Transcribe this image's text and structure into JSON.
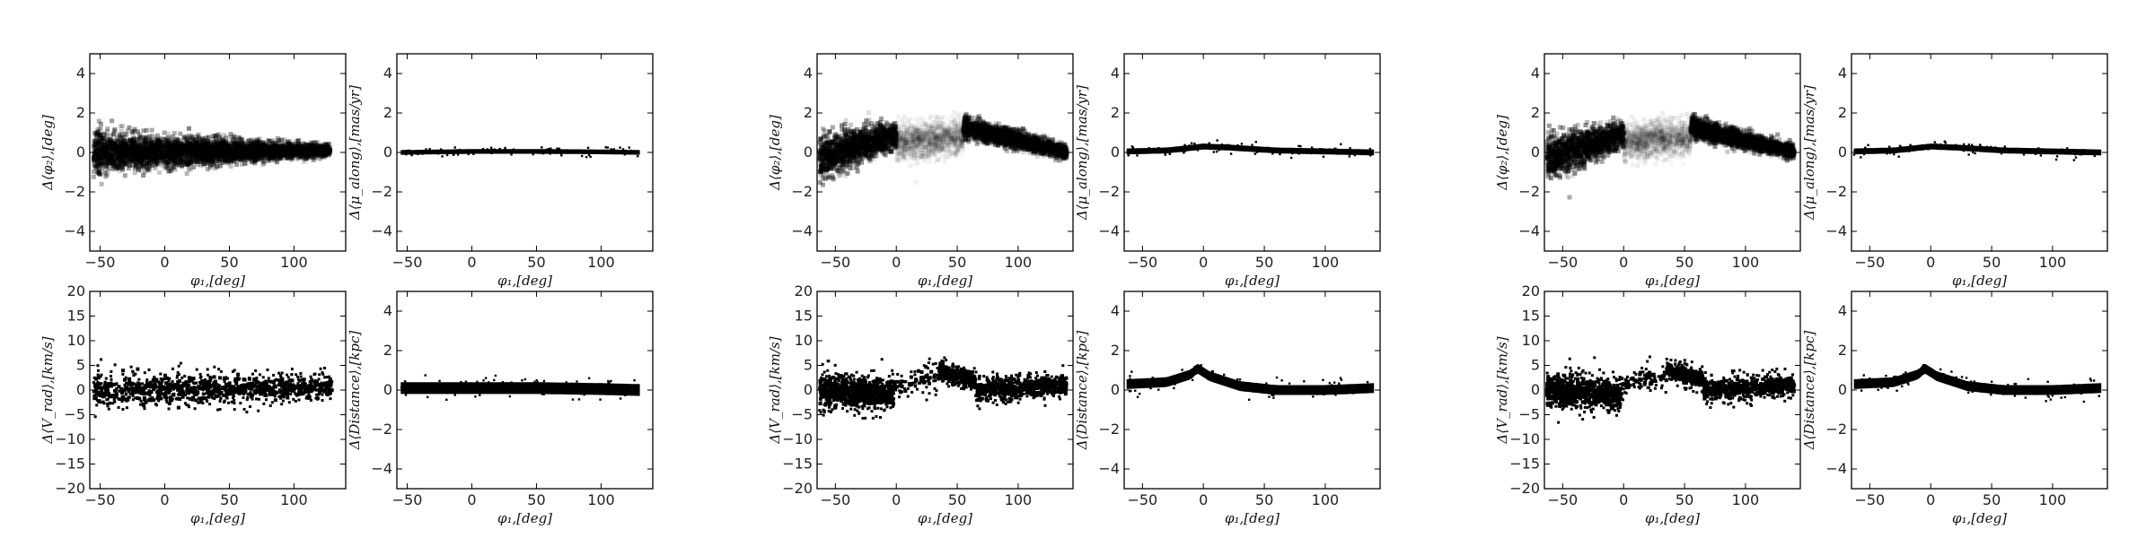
{
  "chart_data": [
    {
      "id": "A-phi2",
      "type": "scatter",
      "style": "density",
      "ylabel": "Δ⟨φ₂⟩,[deg]",
      "xlabel": "φ₁,[deg]",
      "xlim": [
        -58,
        140
      ],
      "ylim": [
        -5,
        5
      ],
      "xticks": [
        {
          "v": -50,
          "label": "−50"
        },
        {
          "v": 0,
          "label": "0"
        },
        {
          "v": 50,
          "label": "50"
        },
        {
          "v": 100,
          "label": "100"
        }
      ],
      "yticks": [
        {
          "v": -4,
          "label": "−4"
        },
        {
          "v": -2,
          "label": "−2"
        },
        {
          "v": 0,
          "label": "0"
        },
        {
          "v": 2,
          "label": "2"
        },
        {
          "v": 4,
          "label": "4"
        }
      ],
      "segments": [
        {
          "x0": -55,
          "x1": 128,
          "y0": 0,
          "y1": 0.1,
          "spread0": 0.9,
          "spread1": 0.25,
          "alpha": 0.5
        }
      ],
      "ridge": [
        [
          -55,
          0
        ],
        [
          -30,
          0
        ],
        [
          0,
          0
        ],
        [
          50,
          0.05
        ],
        [
          100,
          0.1
        ],
        [
          128,
          0.1
        ]
      ]
    },
    {
      "id": "A-pm",
      "type": "scatter",
      "style": "band",
      "ylabel": "Δ⟨μ_along⟩,[mas/yr]",
      "xlabel": "φ₁,[deg]",
      "xlim": [
        -58,
        140
      ],
      "ylim": [
        -5,
        5
      ],
      "xticks": [
        {
          "v": -50,
          "label": "−50"
        },
        {
          "v": 0,
          "label": "0"
        },
        {
          "v": 50,
          "label": "50"
        },
        {
          "v": 100,
          "label": "100"
        }
      ],
      "yticks": [
        {
          "v": -4,
          "label": "−4"
        },
        {
          "v": -2,
          "label": "−2"
        },
        {
          "v": 0,
          "label": "0"
        },
        {
          "v": 2,
          "label": "2"
        },
        {
          "v": 4,
          "label": "4"
        }
      ],
      "ridge": [
        [
          -55,
          0
        ],
        [
          0,
          0.05
        ],
        [
          50,
          0.05
        ],
        [
          100,
          0.03
        ],
        [
          130,
          0
        ]
      ],
      "thickness": 0.12
    },
    {
      "id": "A-vrad",
      "type": "scatter",
      "style": "dots",
      "ylabel": "Δ⟨V_rad⟩,[km/s]",
      "xlabel": "φ₁,[deg]",
      "xlim": [
        -58,
        140
      ],
      "ylim": [
        -20,
        20
      ],
      "xticks": [
        {
          "v": -50,
          "label": "−50"
        },
        {
          "v": 0,
          "label": "0"
        },
        {
          "v": 50,
          "label": "50"
        },
        {
          "v": 100,
          "label": "100"
        }
      ],
      "yticks": [
        {
          "v": -20,
          "label": "−20"
        },
        {
          "v": -15,
          "label": "−15"
        },
        {
          "v": -10,
          "label": "−10"
        },
        {
          "v": -5,
          "label": "−5"
        },
        {
          "v": 0,
          "label": "0"
        },
        {
          "v": 5,
          "label": "5"
        },
        {
          "v": 10,
          "label": "10"
        },
        {
          "v": 15,
          "label": "15"
        },
        {
          "v": 20,
          "label": "20"
        }
      ],
      "segments": [
        {
          "x0": -55,
          "x1": 130,
          "y0": 0,
          "y1": 0.5,
          "spread0": 3.5,
          "spread1": 2.5,
          "n": 700
        }
      ]
    },
    {
      "id": "A-dist",
      "type": "scatter",
      "style": "band",
      "ylabel": "Δ⟨Distance⟩,[kpc]",
      "xlabel": "φ₁,[deg]",
      "xlim": [
        -58,
        140
      ],
      "ylim": [
        -5,
        5
      ],
      "xticks": [
        {
          "v": -50,
          "label": "−50"
        },
        {
          "v": 0,
          "label": "0"
        },
        {
          "v": 50,
          "label": "50"
        },
        {
          "v": 100,
          "label": "100"
        }
      ],
      "yticks": [
        {
          "v": -4,
          "label": "−4"
        },
        {
          "v": -2,
          "label": "−2"
        },
        {
          "v": 0,
          "label": "0"
        },
        {
          "v": 2,
          "label": "2"
        },
        {
          "v": 4,
          "label": "4"
        }
      ],
      "ridge": [
        [
          -55,
          0.1
        ],
        [
          0,
          0.1
        ],
        [
          50,
          0.1
        ],
        [
          100,
          0.05
        ],
        [
          130,
          0
        ]
      ],
      "thickness": 0.3
    },
    {
      "id": "B-phi2",
      "type": "scatter",
      "style": "density",
      "ylabel": "Δ⟨φ₂⟩,[deg]",
      "xlabel": "φ₁,[deg]",
      "xlim": [
        -65,
        145
      ],
      "ylim": [
        -5,
        5
      ],
      "xticks": [
        {
          "v": -50,
          "label": "−50"
        },
        {
          "v": 0,
          "label": "0"
        },
        {
          "v": 50,
          "label": "50"
        },
        {
          "v": 100,
          "label": "100"
        }
      ],
      "yticks": [
        {
          "v": -4,
          "label": "−4"
        },
        {
          "v": -2,
          "label": "−2"
        },
        {
          "v": 0,
          "label": "0"
        },
        {
          "v": 2,
          "label": "2"
        },
        {
          "v": 4,
          "label": "4"
        }
      ],
      "segments": [
        {
          "x0": -63,
          "x1": 0,
          "y0": -0.3,
          "y1": 0.9,
          "spread0": 1.0,
          "spread1": 0.6,
          "alpha": 0.5
        },
        {
          "x0": 0,
          "x1": 55,
          "y0": 0.5,
          "y1": 0.8,
          "spread0": 0.8,
          "spread1": 0.8,
          "alpha": 0.08
        },
        {
          "x0": 55,
          "x1": 140,
          "y0": 1.3,
          "y1": 0,
          "spread0": 0.5,
          "spread1": 0.3,
          "alpha": 0.5
        }
      ],
      "ridge": [
        [
          -63,
          -0.3
        ],
        [
          0,
          0.9
        ],
        [
          55,
          1.2
        ],
        [
          100,
          0.8
        ],
        [
          140,
          0
        ]
      ]
    },
    {
      "id": "B-pm",
      "type": "scatter",
      "style": "band",
      "ylabel": "Δ⟨μ_along⟩,[mas/yr]",
      "xlabel": "φ₁,[deg]",
      "xlim": [
        -65,
        145
      ],
      "ylim": [
        -5,
        5
      ],
      "xticks": [
        {
          "v": -50,
          "label": "−50"
        },
        {
          "v": 0,
          "label": "0"
        },
        {
          "v": 50,
          "label": "50"
        },
        {
          "v": 100,
          "label": "100"
        }
      ],
      "yticks": [
        {
          "v": -4,
          "label": "−4"
        },
        {
          "v": -2,
          "label": "−2"
        },
        {
          "v": 0,
          "label": "0"
        },
        {
          "v": 2,
          "label": "2"
        },
        {
          "v": 4,
          "label": "4"
        }
      ],
      "ridge": [
        [
          -63,
          0.05
        ],
        [
          -30,
          0.1
        ],
        [
          0,
          0.3
        ],
        [
          20,
          0.25
        ],
        [
          60,
          0.1
        ],
        [
          100,
          0.05
        ],
        [
          140,
          0
        ]
      ],
      "thickness": 0.15
    },
    {
      "id": "B-vrad",
      "type": "scatter",
      "style": "dots",
      "ylabel": "Δ⟨V_rad⟩,[km/s]",
      "xlabel": "φ₁,[deg]",
      "xlim": [
        -65,
        145
      ],
      "ylim": [
        -20,
        20
      ],
      "xticks": [
        {
          "v": -50,
          "label": "−50"
        },
        {
          "v": 0,
          "label": "0"
        },
        {
          "v": 50,
          "label": "50"
        },
        {
          "v": 100,
          "label": "100"
        }
      ],
      "yticks": [
        {
          "v": -20,
          "label": "−20"
        },
        {
          "v": -15,
          "label": "−15"
        },
        {
          "v": -10,
          "label": "−10"
        },
        {
          "v": -5,
          "label": "−5"
        },
        {
          "v": 0,
          "label": "0"
        },
        {
          "v": 5,
          "label": "5"
        },
        {
          "v": 10,
          "label": "10"
        },
        {
          "v": 15,
          "label": "15"
        },
        {
          "v": 20,
          "label": "20"
        }
      ],
      "segments": [
        {
          "x0": -63,
          "x1": -2,
          "y0": 0,
          "y1": -1,
          "spread0": 3.5,
          "spread1": 3.0,
          "n": 550
        },
        {
          "x0": -2,
          "x1": 35,
          "y0": 1,
          "y1": 3,
          "spread0": 2.5,
          "spread1": 2.5,
          "n": 60
        },
        {
          "x0": 35,
          "x1": 65,
          "y0": 4,
          "y1": 2,
          "spread0": 2.0,
          "spread1": 2.0,
          "n": 180
        },
        {
          "x0": 65,
          "x1": 140,
          "y0": 0,
          "y1": 1,
          "spread0": 2.5,
          "spread1": 2.0,
          "n": 380
        }
      ]
    },
    {
      "id": "B-dist",
      "type": "scatter",
      "style": "band",
      "ylabel": "Δ⟨Distance⟩,[kpc]",
      "xlabel": "φ₁,[deg]",
      "xlim": [
        -65,
        145
      ],
      "ylim": [
        -5,
        5
      ],
      "xticks": [
        {
          "v": -50,
          "label": "−50"
        },
        {
          "v": 0,
          "label": "0"
        },
        {
          "v": 50,
          "label": "50"
        },
        {
          "v": 100,
          "label": "100"
        }
      ],
      "yticks": [
        {
          "v": -4,
          "label": "−4"
        },
        {
          "v": -2,
          "label": "−2"
        },
        {
          "v": 0,
          "label": "0"
        },
        {
          "v": 2,
          "label": "2"
        },
        {
          "v": 4,
          "label": "4"
        }
      ],
      "ridge": [
        [
          -63,
          0.3
        ],
        [
          -30,
          0.4
        ],
        [
          -10,
          0.8
        ],
        [
          -5,
          1.1
        ],
        [
          5,
          0.7
        ],
        [
          30,
          0.2
        ],
        [
          60,
          0.0
        ],
        [
          100,
          0.0
        ],
        [
          140,
          0.1
        ]
      ],
      "thickness": 0.25
    },
    {
      "id": "C-phi2",
      "type": "scatter",
      "style": "density",
      "ylabel": "Δ⟨φ₂⟩,[deg]",
      "xlabel": "φ₁,[deg]",
      "xlim": [
        -65,
        145
      ],
      "ylim": [
        -5,
        5
      ],
      "xticks": [
        {
          "v": -50,
          "label": "−50"
        },
        {
          "v": 0,
          "label": "0"
        },
        {
          "v": 50,
          "label": "50"
        },
        {
          "v": 100,
          "label": "100"
        }
      ],
      "yticks": [
        {
          "v": -4,
          "label": "−4"
        },
        {
          "v": -2,
          "label": "−2"
        },
        {
          "v": 0,
          "label": "0"
        },
        {
          "v": 2,
          "label": "2"
        },
        {
          "v": 4,
          "label": "4"
        }
      ],
      "segments": [
        {
          "x0": -63,
          "x1": 0,
          "y0": -0.3,
          "y1": 0.9,
          "spread0": 1.0,
          "spread1": 0.6,
          "alpha": 0.5
        },
        {
          "x0": 0,
          "x1": 55,
          "y0": 0.5,
          "y1": 0.8,
          "spread0": 0.8,
          "spread1": 0.8,
          "alpha": 0.08
        },
        {
          "x0": 55,
          "x1": 140,
          "y0": 1.3,
          "y1": 0,
          "spread0": 0.5,
          "spread1": 0.3,
          "alpha": 0.5
        }
      ],
      "ridge": [
        [
          -63,
          -0.3
        ],
        [
          0,
          0.9
        ],
        [
          55,
          1.2
        ],
        [
          100,
          0.8
        ],
        [
          140,
          0
        ]
      ]
    },
    {
      "id": "C-pm",
      "type": "scatter",
      "style": "band",
      "ylabel": "Δ⟨μ_along⟩,[mas/yr]",
      "xlabel": "φ₁,[deg]",
      "xlim": [
        -65,
        145
      ],
      "ylim": [
        -5,
        5
      ],
      "xticks": [
        {
          "v": -50,
          "label": "−50"
        },
        {
          "v": 0,
          "label": "0"
        },
        {
          "v": 50,
          "label": "50"
        },
        {
          "v": 100,
          "label": "100"
        }
      ],
      "yticks": [
        {
          "v": -4,
          "label": "−4"
        },
        {
          "v": -2,
          "label": "−2"
        },
        {
          "v": 0,
          "label": "0"
        },
        {
          "v": 2,
          "label": "2"
        },
        {
          "v": 4,
          "label": "4"
        }
      ],
      "ridge": [
        [
          -63,
          0.05
        ],
        [
          -30,
          0.1
        ],
        [
          0,
          0.3
        ],
        [
          20,
          0.25
        ],
        [
          60,
          0.1
        ],
        [
          100,
          0.05
        ],
        [
          140,
          0
        ]
      ],
      "thickness": 0.15
    },
    {
      "id": "C-vrad",
      "type": "scatter",
      "style": "dots",
      "ylabel": "Δ⟨V_rad⟩,[km/s]",
      "xlabel": "φ₁,[deg]",
      "xlim": [
        -65,
        145
      ],
      "ylim": [
        -20,
        20
      ],
      "xticks": [
        {
          "v": -50,
          "label": "−50"
        },
        {
          "v": 0,
          "label": "0"
        },
        {
          "v": 50,
          "label": "50"
        },
        {
          "v": 100,
          "label": "100"
        }
      ],
      "yticks": [
        {
          "v": -20,
          "label": "−20"
        },
        {
          "v": -15,
          "label": "−15"
        },
        {
          "v": -10,
          "label": "−10"
        },
        {
          "v": -5,
          "label": "−5"
        },
        {
          "v": 0,
          "label": "0"
        },
        {
          "v": 5,
          "label": "5"
        },
        {
          "v": 10,
          "label": "10"
        },
        {
          "v": 15,
          "label": "15"
        },
        {
          "v": 20,
          "label": "20"
        }
      ],
      "segments": [
        {
          "x0": -63,
          "x1": -2,
          "y0": 0,
          "y1": -1,
          "spread0": 3.5,
          "spread1": 3.0,
          "n": 550
        },
        {
          "x0": -2,
          "x1": 35,
          "y0": 1,
          "y1": 3,
          "spread0": 2.5,
          "spread1": 2.5,
          "n": 60
        },
        {
          "x0": 35,
          "x1": 65,
          "y0": 4,
          "y1": 2,
          "spread0": 2.0,
          "spread1": 2.0,
          "n": 180
        },
        {
          "x0": 65,
          "x1": 140,
          "y0": 0,
          "y1": 1,
          "spread0": 2.5,
          "spread1": 2.0,
          "n": 380
        }
      ]
    },
    {
      "id": "C-dist",
      "type": "scatter",
      "style": "band",
      "ylabel": "Δ⟨Distance⟩,[kpc]",
      "xlabel": "φ₁,[deg]",
      "xlim": [
        -65,
        145
      ],
      "ylim": [
        -5,
        5
      ],
      "xticks": [
        {
          "v": -50,
          "label": "−50"
        },
        {
          "v": 0,
          "label": "0"
        },
        {
          "v": 50,
          "label": "50"
        },
        {
          "v": 100,
          "label": "100"
        }
      ],
      "yticks": [
        {
          "v": -4,
          "label": "−4"
        },
        {
          "v": -2,
          "label": "−2"
        },
        {
          "v": 0,
          "label": "0"
        },
        {
          "v": 2,
          "label": "2"
        },
        {
          "v": 4,
          "label": "4"
        }
      ],
      "ridge": [
        [
          -63,
          0.3
        ],
        [
          -30,
          0.4
        ],
        [
          -10,
          0.8
        ],
        [
          -5,
          1.1
        ],
        [
          5,
          0.7
        ],
        [
          30,
          0.2
        ],
        [
          60,
          0.0
        ],
        [
          100,
          0.0
        ],
        [
          140,
          0.1
        ]
      ],
      "thickness": 0.25
    }
  ]
}
